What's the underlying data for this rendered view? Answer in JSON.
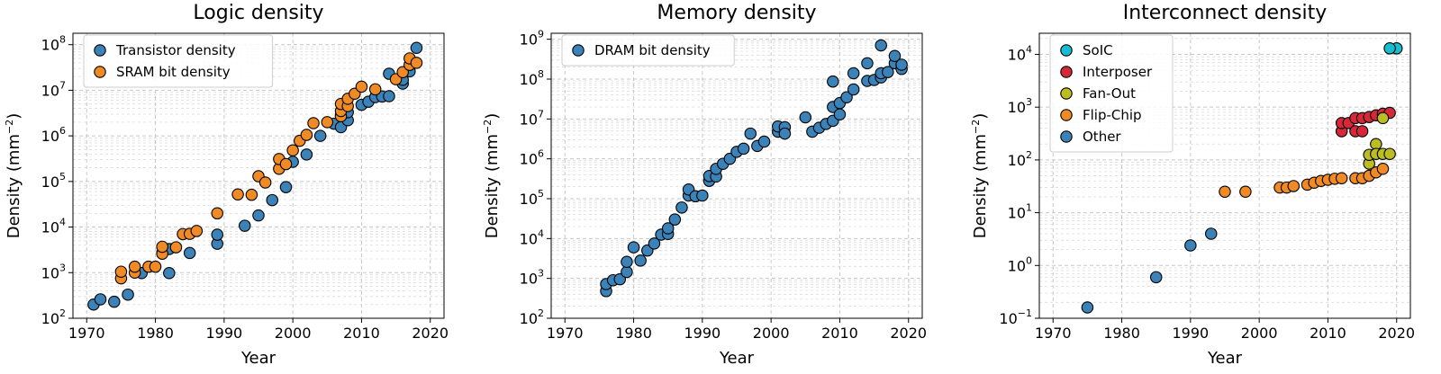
{
  "figure": {
    "colors": {
      "blue": "#3b82b8",
      "orange": "#f08a24",
      "cyan": "#17becf",
      "red": "#d62839",
      "olive": "#bcbd22",
      "marker_edge": "#000000"
    }
  },
  "chart_data": [
    {
      "type": "scatter",
      "title": "Logic density",
      "xlabel": "Year",
      "ylabel_main": "Density (mm",
      "ylabel_sup": "−2",
      "ylabel_tail": ")",
      "xlim": [
        1968,
        2022
      ],
      "ylim_log10": [
        2,
        8.25
      ],
      "xticks": [
        "1970",
        "1980",
        "1990",
        "2000",
        "2010",
        "2020"
      ],
      "yticks": [
        {
          "base": "10",
          "exp": "2"
        },
        {
          "base": "10",
          "exp": "3"
        },
        {
          "base": "10",
          "exp": "4"
        },
        {
          "base": "10",
          "exp": "5"
        },
        {
          "base": "10",
          "exp": "6"
        },
        {
          "base": "10",
          "exp": "7"
        },
        {
          "base": "10",
          "exp": "8"
        }
      ],
      "ytick_log10": [
        2,
        3,
        4,
        5,
        6,
        7,
        8
      ],
      "scale": "log",
      "grid": true,
      "legend_position": "top-left",
      "series": [
        {
          "name": "Transistor density",
          "color": "blue",
          "points": [
            [
              1971,
              200
            ],
            [
              1972,
              260
            ],
            [
              1974,
              230
            ],
            [
              1976,
              330
            ],
            [
              1978,
              980
            ],
            [
              1981,
              2700
            ],
            [
              1982,
              980
            ],
            [
              1982,
              3300
            ],
            [
              1985,
              2700
            ],
            [
              1989,
              4300
            ],
            [
              1989,
              6800
            ],
            [
              1993,
              10700
            ],
            [
              1995,
              18000
            ],
            [
              1997,
              39000
            ],
            [
              1999,
              75000
            ],
            [
              2000,
              270000
            ],
            [
              2002,
              390000
            ],
            [
              2004,
              1000000
            ],
            [
              2006,
              1850000
            ],
            [
              2007,
              1550000
            ],
            [
              2007,
              2800000
            ],
            [
              2008,
              2200000
            ],
            [
              2008,
              3300000
            ],
            [
              2010,
              4800000
            ],
            [
              2011,
              5600000
            ],
            [
              2012,
              7100000
            ],
            [
              2013,
              7300000
            ],
            [
              2014,
              7400000
            ],
            [
              2014,
              23000000
            ],
            [
              2016,
              14000000
            ],
            [
              2016,
              17000000
            ],
            [
              2017,
              26000000
            ],
            [
              2018,
              85000000
            ]
          ]
        },
        {
          "name": "SRAM bit density",
          "color": "orange",
          "points": [
            [
              1975,
              750
            ],
            [
              1975,
              1050
            ],
            [
              1977,
              1000
            ],
            [
              1977,
              1350
            ],
            [
              1979,
              1350
            ],
            [
              1980,
              1350
            ],
            [
              1981,
              2600
            ],
            [
              1981,
              3700
            ],
            [
              1983,
              3600
            ],
            [
              1984,
              7000
            ],
            [
              1985,
              7100
            ],
            [
              1986,
              8200
            ],
            [
              1989,
              20000
            ],
            [
              1992,
              52000
            ],
            [
              1994,
              51000
            ],
            [
              1995,
              130000
            ],
            [
              1996,
              95000
            ],
            [
              1998,
              190000
            ],
            [
              1998,
              310000
            ],
            [
              1999,
              240000
            ],
            [
              2000,
              480000
            ],
            [
              2001,
              780000
            ],
            [
              2002,
              1050000
            ],
            [
              2003,
              1900000
            ],
            [
              2005,
              2000000
            ],
            [
              2007,
              2700000
            ],
            [
              2007,
              3500000
            ],
            [
              2007,
              5000000
            ],
            [
              2008,
              4500000
            ],
            [
              2008,
              6500000
            ],
            [
              2009,
              8400000
            ],
            [
              2010,
              12000000
            ],
            [
              2012,
              10500000
            ],
            [
              2015,
              17500000
            ],
            [
              2016,
              25000000
            ],
            [
              2017,
              36000000
            ],
            [
              2017,
              50000000
            ],
            [
              2018,
              40000000
            ]
          ]
        }
      ]
    },
    {
      "type": "scatter",
      "title": "Memory density",
      "xlabel": "Year",
      "ylabel_main": "Density (mm",
      "ylabel_sup": "−2",
      "ylabel_tail": ")",
      "xlim": [
        1968,
        2022
      ],
      "ylim_log10": [
        2,
        9.15
      ],
      "xticks": [
        "1970",
        "1980",
        "1990",
        "2000",
        "2010",
        "2020"
      ],
      "yticks": [
        {
          "base": "10",
          "exp": "2"
        },
        {
          "base": "10",
          "exp": "3"
        },
        {
          "base": "10",
          "exp": "4"
        },
        {
          "base": "10",
          "exp": "5"
        },
        {
          "base": "10",
          "exp": "6"
        },
        {
          "base": "10",
          "exp": "7"
        },
        {
          "base": "10",
          "exp": "8"
        },
        {
          "base": "10",
          "exp": "9"
        }
      ],
      "ytick_log10": [
        2,
        3,
        4,
        5,
        6,
        7,
        8,
        9
      ],
      "scale": "log",
      "grid": true,
      "legend_position": "top-left",
      "series": [
        {
          "name": "DRAM bit density",
          "color": "blue",
          "points": [
            [
              1976,
              480
            ],
            [
              1976,
              720
            ],
            [
              1977,
              900
            ],
            [
              1978,
              950
            ],
            [
              1979,
              1450
            ],
            [
              1979,
              2600
            ],
            [
              1980,
              6000
            ],
            [
              1981,
              2800
            ],
            [
              1982,
              5000
            ],
            [
              1983,
              7500
            ],
            [
              1984,
              12500
            ],
            [
              1985,
              13000
            ],
            [
              1985,
              18000
            ],
            [
              1986,
              30000
            ],
            [
              1987,
              60000
            ],
            [
              1988,
              120000
            ],
            [
              1988,
              170000
            ],
            [
              1989,
              115000
            ],
            [
              1990,
              120000
            ],
            [
              1991,
              280000
            ],
            [
              1991,
              370000
            ],
            [
              1992,
              360000
            ],
            [
              1992,
              560000
            ],
            [
              1993,
              750000
            ],
            [
              1994,
              1000000
            ],
            [
              1995,
              1500000
            ],
            [
              1996,
              1800000
            ],
            [
              1997,
              4300000
            ],
            [
              1998,
              2100000
            ],
            [
              1999,
              2700000
            ],
            [
              2001,
              4800000
            ],
            [
              2001,
              6500000
            ],
            [
              2002,
              6200000
            ],
            [
              2002,
              4300000
            ],
            [
              2005,
              11000000
            ],
            [
              2006,
              4800000
            ],
            [
              2007,
              6000000
            ],
            [
              2008,
              7500000
            ],
            [
              2009,
              9000000
            ],
            [
              2009,
              20000000
            ],
            [
              2009,
              87000000
            ],
            [
              2010,
              13000000
            ],
            [
              2010,
              25000000
            ],
            [
              2011,
              35000000
            ],
            [
              2012,
              55000000
            ],
            [
              2012,
              140000000
            ],
            [
              2014,
              90000000
            ],
            [
              2014,
              250000000
            ],
            [
              2015,
              95000000
            ],
            [
              2016,
              110000000
            ],
            [
              2016,
              140000000
            ],
            [
              2016,
              700000000
            ],
            [
              2017,
              150000000
            ],
            [
              2018,
              250000000
            ],
            [
              2018,
              380000000
            ],
            [
              2019,
              180000000
            ],
            [
              2019,
              230000000
            ]
          ]
        }
      ]
    },
    {
      "type": "scatter",
      "title": "Interconnect density",
      "xlabel": "Year",
      "ylabel_main": "Density (mm",
      "ylabel_sup": "−2",
      "ylabel_tail": ")",
      "xlim": [
        1968,
        2022
      ],
      "ylim_log10": [
        -1,
        4.4
      ],
      "xticks": [
        "1970",
        "1980",
        "1990",
        "2000",
        "2010",
        "2020"
      ],
      "yticks": [
        {
          "base": "10",
          "exp": "−1"
        },
        {
          "base": "10",
          "exp": "0"
        },
        {
          "base": "10",
          "exp": "1"
        },
        {
          "base": "10",
          "exp": "2"
        },
        {
          "base": "10",
          "exp": "3"
        },
        {
          "base": "10",
          "exp": "4"
        }
      ],
      "ytick_log10": [
        -1,
        0,
        1,
        2,
        3,
        4
      ],
      "scale": "log",
      "grid": true,
      "legend_position": "top-left",
      "series": [
        {
          "name": "SoIC",
          "color": "cyan",
          "points": [
            [
              2020,
              13000
            ],
            [
              2019,
              13000
            ]
          ]
        },
        {
          "name": "Interposer",
          "color": "red",
          "points": [
            [
              2012,
              350
            ],
            [
              2012,
              500
            ],
            [
              2013,
              500
            ],
            [
              2014,
              350
            ],
            [
              2014,
              620
            ],
            [
              2015,
              350
            ],
            [
              2015,
              620
            ],
            [
              2016,
              650
            ],
            [
              2017,
              700
            ],
            [
              2018,
              750
            ],
            [
              2019,
              780
            ]
          ]
        },
        {
          "name": "Fan-Out",
          "color": "olive",
          "points": [
            [
              2016,
              85
            ],
            [
              2016,
              125
            ],
            [
              2017,
              200
            ],
            [
              2017,
              130
            ],
            [
              2018,
              130
            ],
            [
              2018,
              620
            ],
            [
              2019,
              130
            ]
          ]
        },
        {
          "name": "Flip-Chip",
          "color": "orange",
          "points": [
            [
              1995,
              25
            ],
            [
              1998,
              25
            ],
            [
              2003,
              30
            ],
            [
              2004,
              30
            ],
            [
              2005,
              32
            ],
            [
              2007,
              34
            ],
            [
              2008,
              37
            ],
            [
              2009,
              40
            ],
            [
              2010,
              42
            ],
            [
              2011,
              44
            ],
            [
              2012,
              45
            ],
            [
              2014,
              45
            ],
            [
              2015,
              45
            ],
            [
              2016,
              50
            ],
            [
              2017,
              58
            ],
            [
              2018,
              68
            ]
          ]
        },
        {
          "name": "Other",
          "color": "blue",
          "points": [
            [
              1975,
              0.16
            ],
            [
              1985,
              0.6
            ],
            [
              1990,
              2.4
            ],
            [
              1993,
              4
            ]
          ]
        }
      ]
    }
  ]
}
